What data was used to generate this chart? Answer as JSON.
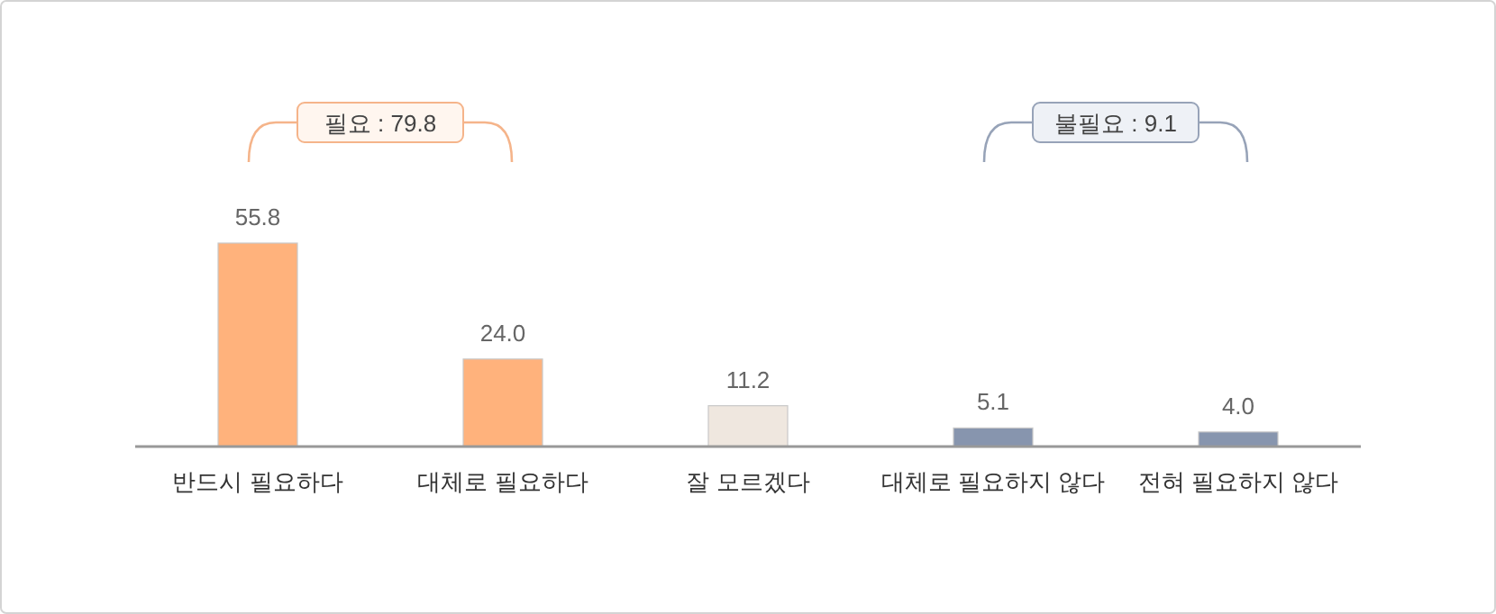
{
  "chart_data": {
    "type": "bar",
    "categories": [
      "반드시 필요하다",
      "대체로 필요하다",
      "잘 모르겠다",
      "대체로 필요하지 않다",
      "전혀 필요하지 않다"
    ],
    "values": [
      55.8,
      24.0,
      11.2,
      5.1,
      4.0
    ],
    "value_labels": [
      "55.8",
      "24.0",
      "11.2",
      "5.1",
      "4.0"
    ],
    "colors": [
      "#ffb27c",
      "#ffb27c",
      "#efe7df",
      "#8795ae",
      "#8795ae"
    ],
    "annotations": [
      "필요 : 79.8",
      "불필요 : 9.1"
    ]
  }
}
